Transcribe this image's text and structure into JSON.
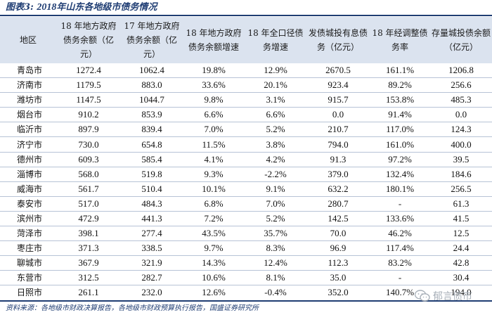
{
  "caption": {
    "label": "图表3:",
    "year": "2018",
    "title": "年山东各地级市债务情况"
  },
  "headers": [
    "地区",
    "18 年地方政府债务余额（亿元）",
    "17 年地方政府债务余额（亿元）",
    "18 年地方政府债务余额增速",
    "18 年全口径债务增速",
    "发债城投有息债务（亿元）",
    "18 年经调整债务率",
    "存量城投债余额（亿元）"
  ],
  "rows": [
    [
      "青岛市",
      "1272.4",
      "1062.4",
      "19.8%",
      "12.9%",
      "2670.5",
      "161.1%",
      "1206.8"
    ],
    [
      "济南市",
      "1179.5",
      "883.0",
      "33.6%",
      "20.1%",
      "923.4",
      "89.2%",
      "256.6"
    ],
    [
      "潍坊市",
      "1147.5",
      "1044.7",
      "9.8%",
      "3.1%",
      "915.7",
      "153.8%",
      "485.3"
    ],
    [
      "烟台市",
      "910.2",
      "853.9",
      "6.6%",
      "6.6%",
      "0.0",
      "91.4%",
      "0.0"
    ],
    [
      "临沂市",
      "897.9",
      "839.4",
      "7.0%",
      "5.2%",
      "210.7",
      "117.0%",
      "124.3"
    ],
    [
      "济宁市",
      "730.0",
      "654.8",
      "11.5%",
      "3.8%",
      "794.0",
      "161.0%",
      "400.0"
    ],
    [
      "德州市",
      "609.3",
      "585.4",
      "4.1%",
      "4.2%",
      "91.3",
      "97.2%",
      "39.5"
    ],
    [
      "淄博市",
      "568.0",
      "519.8",
      "9.3%",
      "-2.2%",
      "379.0",
      "132.4%",
      "184.6"
    ],
    [
      "威海市",
      "561.7",
      "510.4",
      "10.1%",
      "9.1%",
      "632.2",
      "180.1%",
      "256.5"
    ],
    [
      "泰安市",
      "517.0",
      "484.3",
      "6.8%",
      "7.0%",
      "280.7",
      "-",
      "61.3"
    ],
    [
      "滨州市",
      "472.9",
      "441.3",
      "7.2%",
      "5.2%",
      "142.5",
      "133.6%",
      "41.5"
    ],
    [
      "菏泽市",
      "398.1",
      "277.4",
      "43.5%",
      "35.7%",
      "70.0",
      "46.2%",
      "12.5"
    ],
    [
      "枣庄市",
      "371.3",
      "338.5",
      "9.7%",
      "8.3%",
      "96.9",
      "117.4%",
      "24.4"
    ],
    [
      "聊城市",
      "367.9",
      "321.9",
      "14.3%",
      "12.4%",
      "112.3",
      "83.2%",
      "42.8"
    ],
    [
      "东营市",
      "312.5",
      "282.7",
      "10.6%",
      "8.1%",
      "35.0",
      "-",
      "30.4"
    ],
    [
      "日照市",
      "261.1",
      "232.0",
      "12.6%",
      "-0.4%",
      "352.0",
      "140.7%",
      "194.0"
    ]
  ],
  "source": "资料来源：各地级市财政决算报告，各地级市财政预算执行报告，国盛证券研究所",
  "watermark": {
    "icon": "wechat-icon",
    "text": "郁言债市"
  },
  "colors": {
    "accent": "#1f3d73",
    "header_bg": "#dbe3ef",
    "row_rule": "#b7c3d6"
  }
}
